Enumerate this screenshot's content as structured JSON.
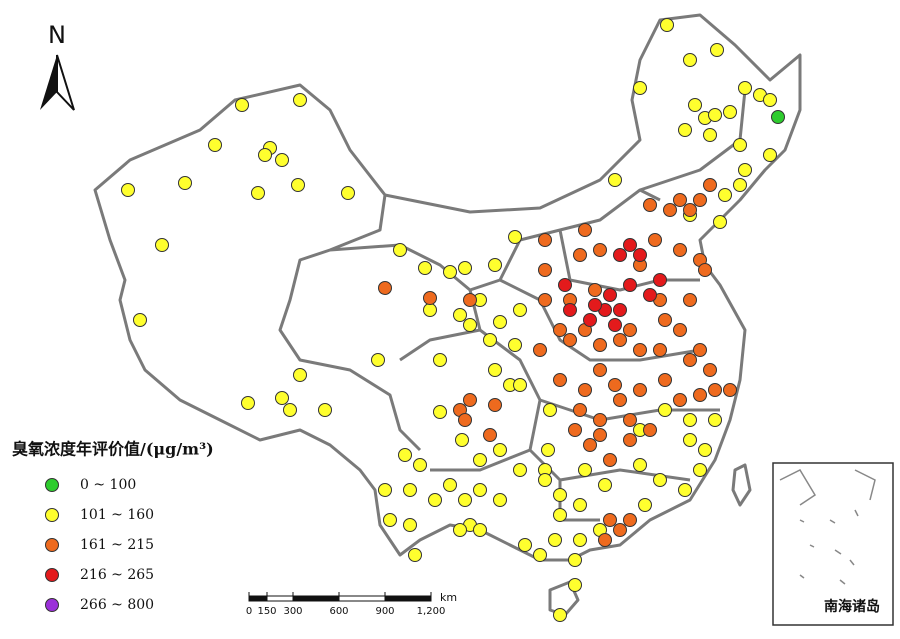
{
  "north_label": "N",
  "legend": {
    "title": "臭氧浓度年评价值/(μg/m³)",
    "items": [
      {
        "label": "0 ~ 100",
        "color": "#2ecc2e"
      },
      {
        "label": "101 ~ 160",
        "color": "#ffff2e"
      },
      {
        "label": "161 ~ 215",
        "color": "#ee6a1e"
      },
      {
        "label": "216 ~ 265",
        "color": "#e31a1c"
      },
      {
        "label": "266 ~ 800",
        "color": "#9b30d9"
      }
    ]
  },
  "scale_bar": {
    "unit": "km",
    "labels": [
      "0",
      "150",
      "300",
      "600",
      "900",
      "1,200"
    ]
  },
  "inset_label": "南海诸岛"
}
